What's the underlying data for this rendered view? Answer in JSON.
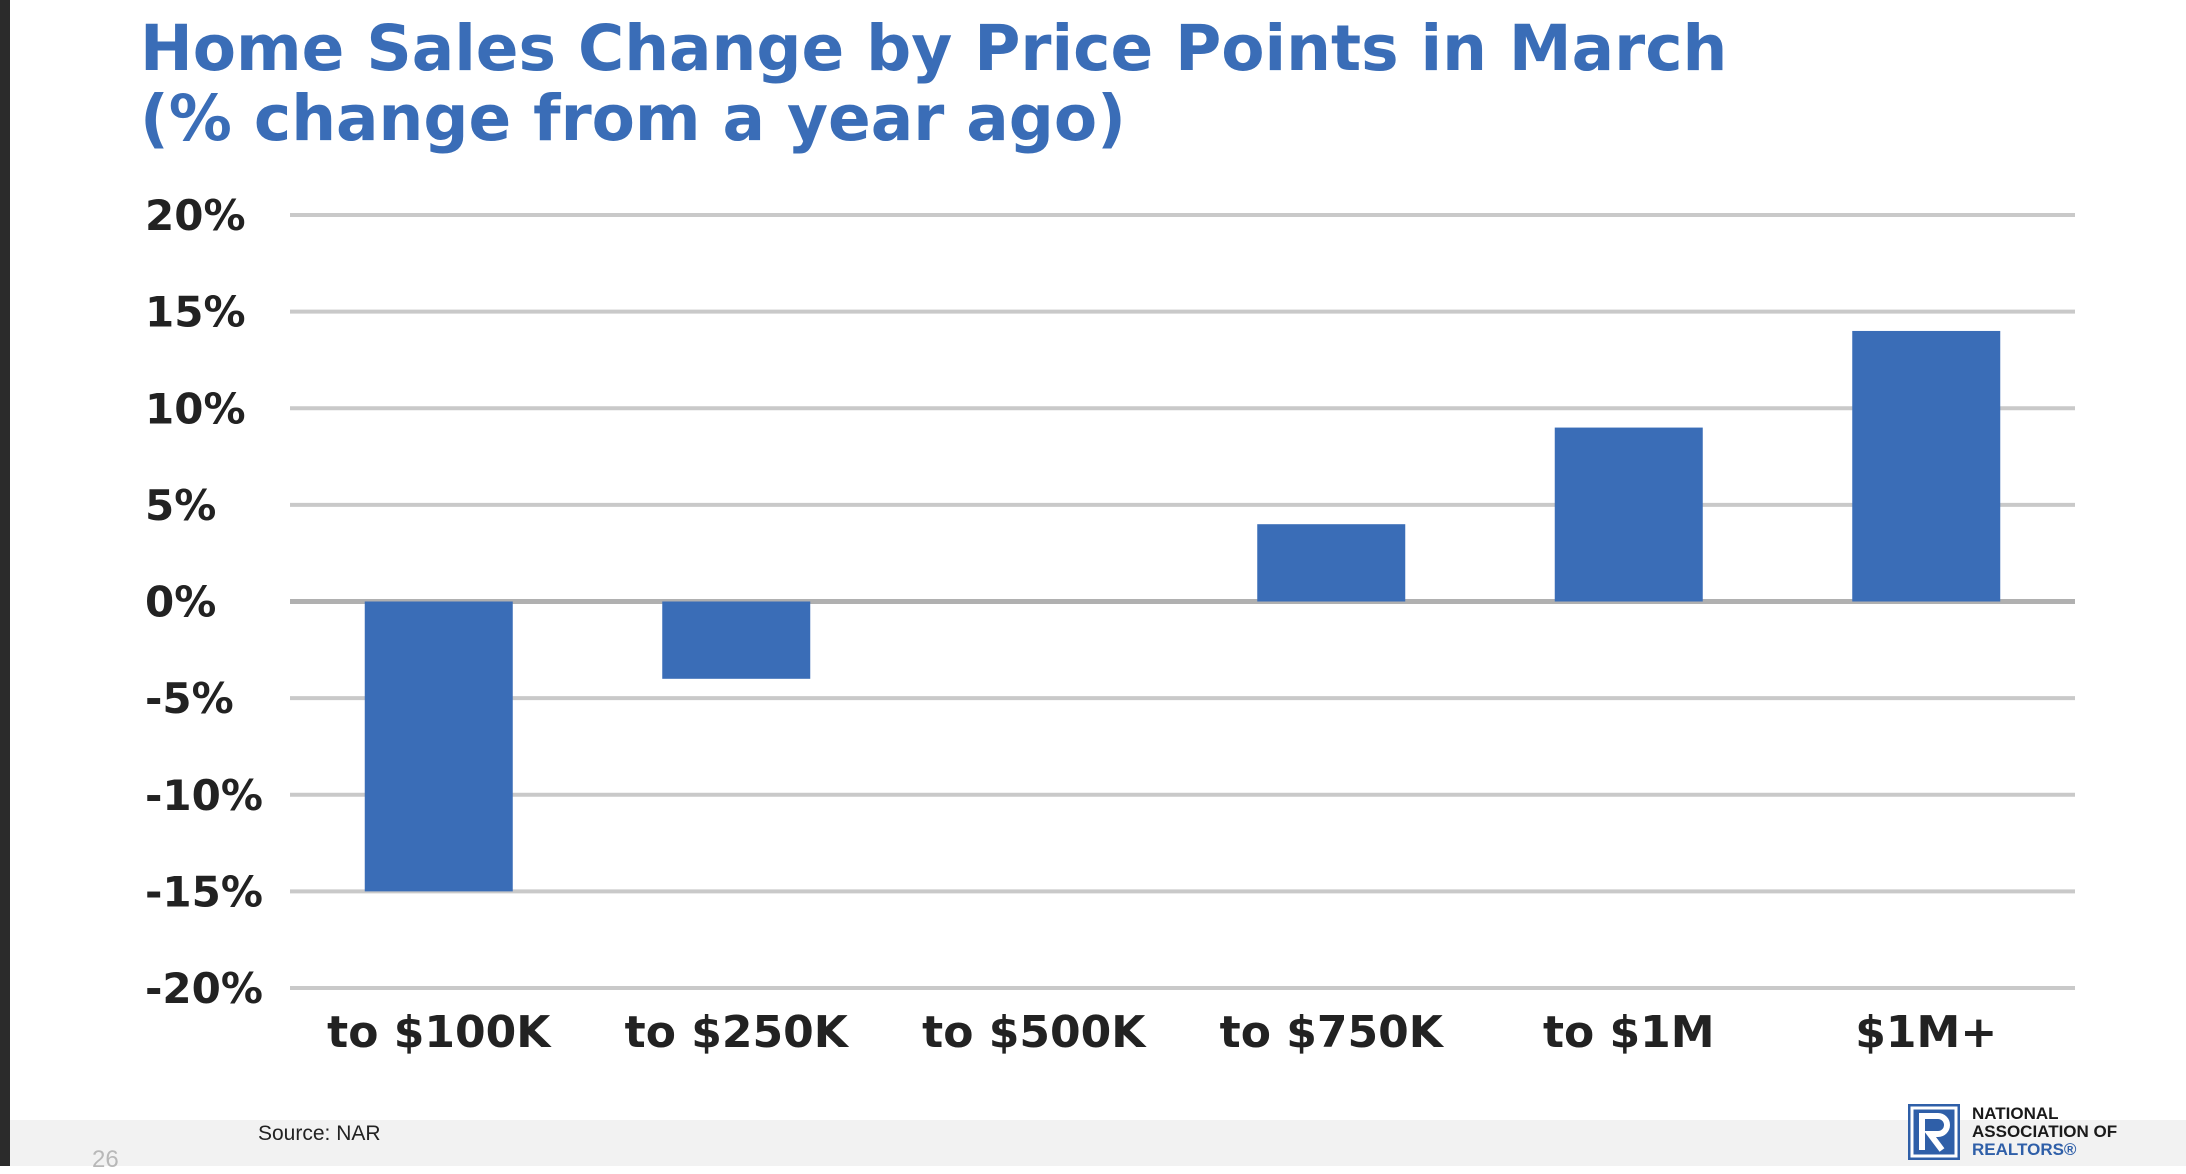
{
  "title": {
    "line1": "Home Sales Change by Price Points in March",
    "line2": "(% change from a year ago)"
  },
  "chart_data": {
    "type": "bar",
    "categories": [
      "to $100K",
      "to $250K",
      "to $500K",
      "to $750K",
      "to $1M",
      "$1M+"
    ],
    "values": [
      -15,
      -4,
      0,
      4,
      9,
      14
    ],
    "ylim": [
      -20,
      20
    ],
    "yticks": [
      20,
      15,
      10,
      5,
      0,
      -5,
      -10,
      -15,
      -20
    ],
    "ytick_labels": [
      "20%",
      "15%",
      "10%",
      "5%",
      "0%",
      "-5%",
      "-10%",
      "-15%",
      "-20%"
    ],
    "grid": true,
    "bar_color": "#3a6db7"
  },
  "footer": {
    "source": "Source: NAR",
    "page_number": "26",
    "logo_line1": "NATIONAL",
    "logo_line2": "ASSOCIATION OF",
    "logo_line3": "REALTORS®"
  }
}
